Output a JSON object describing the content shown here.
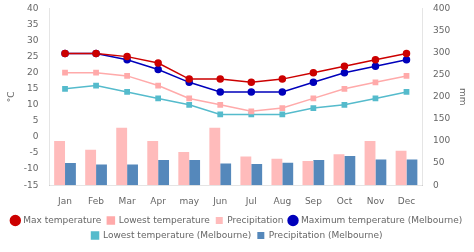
{
  "chart_data": {
    "type": "bar",
    "categories": [
      "Jan",
      "Feb",
      "Mar",
      "Apr",
      "may",
      "Jun",
      "Jul",
      "Aug",
      "Sep",
      "Oct",
      "Nov",
      "Dec"
    ],
    "series": [
      {
        "name": "Max temperature",
        "type": "line",
        "color": "#cc0000",
        "marker": "circle",
        "values": [
          26,
          26,
          25,
          23,
          18,
          18,
          17,
          18,
          20,
          22,
          24,
          26
        ]
      },
      {
        "name": "Lowest temperature",
        "type": "line",
        "color": "#ffaaaa",
        "marker": "square",
        "values": [
          20,
          20,
          19,
          16,
          12,
          10,
          8,
          9,
          12,
          15,
          17,
          19
        ]
      },
      {
        "name": "Precipitation",
        "type": "bar",
        "axis": "y2",
        "color": "#ffbbbb",
        "values": [
          100,
          80,
          130,
          100,
          75,
          130,
          65,
          60,
          55,
          70,
          100,
          78
        ]
      },
      {
        "name": "Maximum temperature (Melbourne)",
        "type": "line",
        "color": "#0000bb",
        "marker": "circle",
        "values": [
          26,
          26,
          24,
          21,
          17,
          14,
          14,
          14,
          17,
          20,
          22,
          24
        ]
      },
      {
        "name": "Lowest temperature (Melbourne)",
        "type": "line",
        "color": "#55bbcc",
        "marker": "square",
        "values": [
          15,
          16,
          14,
          12,
          10,
          7,
          7,
          7,
          9,
          10,
          12,
          14
        ]
      },
      {
        "name": "Precipitation (Melbourne)",
        "type": "bar",
        "axis": "y2",
        "color": "#5588bb",
        "values": [
          50,
          47,
          47,
          57,
          57,
          49,
          48,
          51,
          57,
          66,
          58,
          58
        ]
      }
    ],
    "ylabel": "°C",
    "y2label": "mm",
    "ylim": [
      -15,
      40
    ],
    "yticks": [
      -15,
      -10,
      -5,
      0,
      5,
      10,
      15,
      20,
      25,
      30,
      35,
      40
    ],
    "y2lim": [
      0,
      400
    ],
    "y2ticks": [
      0,
      50,
      100,
      150,
      200,
      250,
      300,
      350,
      400
    ],
    "grid": false,
    "legend": "bottom"
  }
}
